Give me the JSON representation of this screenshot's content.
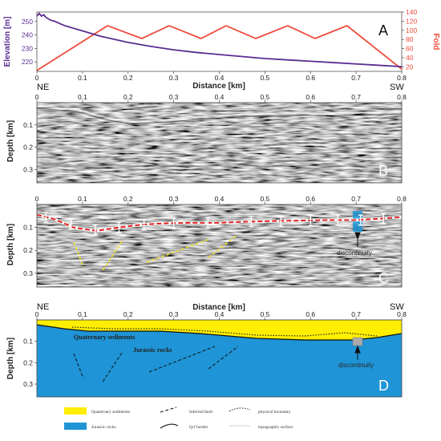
{
  "panel_a": {
    "tag": "A",
    "xlabel": "Distance [km]",
    "ylabel_left": "Elevation [m]",
    "ylabel_right": "Fold",
    "left_color": "#5a2d91",
    "right_color": "#ef4b3c",
    "x_ticks": [
      "0",
      "0.1",
      "0.2",
      "0.3",
      "0.4",
      "0.5",
      "0.6",
      "0.7",
      "0.8"
    ],
    "y_left_ticks": [
      "250",
      "240",
      "230",
      "220"
    ],
    "y_right_ticks": [
      "140",
      "120",
      "100",
      "80",
      "60",
      "40",
      "20"
    ]
  },
  "direction": {
    "left": "NE",
    "right": "SW"
  },
  "panel_b": {
    "tag": "B",
    "ylabel": "Depth [km]",
    "x_ticks": [
      "0",
      "0.1",
      "0.2",
      "0.3",
      "0.4",
      "0.5",
      "0.6",
      "0.7",
      "0.8"
    ],
    "y_ticks": [
      "0.1",
      "0.2",
      "0.3"
    ]
  },
  "panel_c": {
    "tag": "C",
    "ylabel": "Depth [km]",
    "xlabel": "Distance [km]",
    "annotation": "discontinuity",
    "x_ticks": [
      "0",
      "0.1",
      "0.2",
      "0.3",
      "0.4",
      "0.5",
      "0.6",
      "0.7",
      "0.8"
    ],
    "y_ticks": [
      "0.1",
      "0.2",
      "0.3"
    ]
  },
  "panel_d": {
    "tag": "D",
    "ylabel": "Depth [km]",
    "label_quaternary": "Quaternary sediments",
    "label_jurassic": "Jurassic rocks",
    "annotation": "discontinuity",
    "quaternary_color": "#ffee00",
    "jurassic_color": "#1f94d6",
    "x_ticks": [
      "0",
      "0.1",
      "0.2",
      "0.3",
      "0.4",
      "0.5",
      "0.6",
      "0.7",
      "0.8"
    ],
    "y_ticks": [
      "0.1",
      "0.2",
      "0.3"
    ]
  },
  "legend": {
    "quaternary": "Quaternary sediments",
    "jurassic": "Jurassic rocks",
    "inferred_fault": "Inferred fault",
    "q_j_border": "Q/J border",
    "physical_boundary": "physical boundary",
    "topographic_surface": "topographic surface"
  },
  "chart_data": [
    {
      "panel": "A",
      "type": "line",
      "xlabel": "Distance [km]",
      "xlim": [
        0,
        0.8
      ],
      "series": [
        {
          "name": "Elevation [m]",
          "axis": "left",
          "ylim": [
            213,
            257
          ],
          "x": [
            0,
            0.005,
            0.01,
            0.015,
            0.02,
            0.03,
            0.04,
            0.05,
            0.06,
            0.07,
            0.08,
            0.09,
            0.1,
            0.12,
            0.14,
            0.16,
            0.18,
            0.2,
            0.25,
            0.3,
            0.35,
            0.4,
            0.45,
            0.5,
            0.55,
            0.6,
            0.65,
            0.7,
            0.75,
            0.8
          ],
          "y": [
            254,
            256,
            254,
            255,
            253,
            251,
            250,
            248.5,
            247,
            246,
            245,
            244,
            243,
            241,
            239,
            237.5,
            236,
            234.5,
            231.5,
            229,
            227,
            225.5,
            224,
            222.5,
            221.5,
            220.5,
            219.5,
            218.5,
            217.5,
            216.5
          ]
        },
        {
          "name": "Fold",
          "axis": "right",
          "ylim": [
            10,
            140
          ],
          "x": [
            0,
            0.155,
            0.23,
            0.29,
            0.36,
            0.415,
            0.48,
            0.55,
            0.61,
            0.68,
            0.8
          ],
          "y": [
            12,
            110,
            82,
            110,
            82,
            110,
            82,
            110,
            82,
            110,
            15
          ]
        }
      ]
    },
    {
      "panel": "C",
      "type": "line",
      "ylabel": "Depth [km]",
      "xlim": [
        0,
        0.8
      ],
      "ylim": [
        0.36,
        0
      ],
      "series": [
        {
          "name": "Q/J border",
          "x": [
            0,
            0.04,
            0.08,
            0.13,
            0.18,
            0.23,
            0.28,
            0.34,
            0.4,
            0.46,
            0.52,
            0.58,
            0.64,
            0.7,
            0.75,
            0.8
          ],
          "y": [
            0.045,
            0.065,
            0.1,
            0.115,
            0.1,
            0.088,
            0.082,
            0.08,
            0.08,
            0.075,
            0.072,
            0.07,
            0.068,
            0.068,
            0.062,
            0.055
          ]
        }
      ],
      "error_bars": {
        "x": [
          0.02,
          0.075,
          0.128,
          0.18,
          0.235,
          0.3,
          0.375,
          0.47,
          0.535,
          0.6,
          0.66,
          0.71,
          0.76
        ],
        "y": [
          0.055,
          0.085,
          0.11,
          0.1,
          0.088,
          0.082,
          0.08,
          0.075,
          0.072,
          0.07,
          0.068,
          0.068,
          0.062
        ],
        "half_height_km": 0.022
      }
    }
  ]
}
